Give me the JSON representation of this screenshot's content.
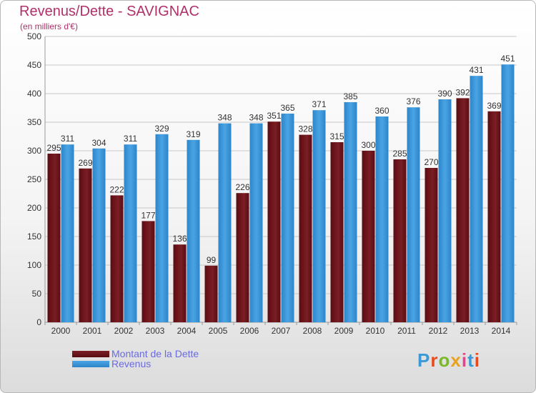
{
  "title": "Revenus/Dette - SAVIGNAC",
  "subtitle": "(en milliers d'€)",
  "logo": {
    "letters": [
      "P",
      "r",
      "o",
      "x",
      "i",
      "t",
      "i"
    ],
    "colors": [
      "#3a9ad9",
      "#e84a1e",
      "#7ab828",
      "#e8a21e",
      "#d94a8c",
      "#3a9ad9",
      "#e84a1e"
    ]
  },
  "colors": {
    "dette": "#7a1e24",
    "dette_dark": "#5a0c12",
    "revenus": "#4aa4e4",
    "revenus_dark": "#2d85c8",
    "grid": "#c8c8c8",
    "axis_text": "#333333"
  },
  "chart_data": {
    "type": "bar",
    "categories": [
      "2000",
      "2001",
      "2002",
      "2003",
      "2004",
      "2005",
      "2006",
      "2007",
      "2008",
      "2009",
      "2010",
      "2011",
      "2012",
      "2013",
      "2014"
    ],
    "series": [
      {
        "name": "Montant de la Dette",
        "values": [
          295,
          269,
          222,
          177,
          136,
          99,
          226,
          351,
          328,
          315,
          300,
          285,
          270,
          392,
          369
        ]
      },
      {
        "name": "Revenus",
        "values": [
          311,
          304,
          311,
          329,
          319,
          348,
          348,
          365,
          371,
          385,
          360,
          376,
          390,
          431,
          451
        ]
      }
    ],
    "ylim": [
      0,
      500
    ],
    "yticks": [
      0,
      50,
      100,
      150,
      200,
      250,
      300,
      350,
      400,
      450,
      500
    ],
    "grid": true,
    "legend": "bottom-left"
  }
}
